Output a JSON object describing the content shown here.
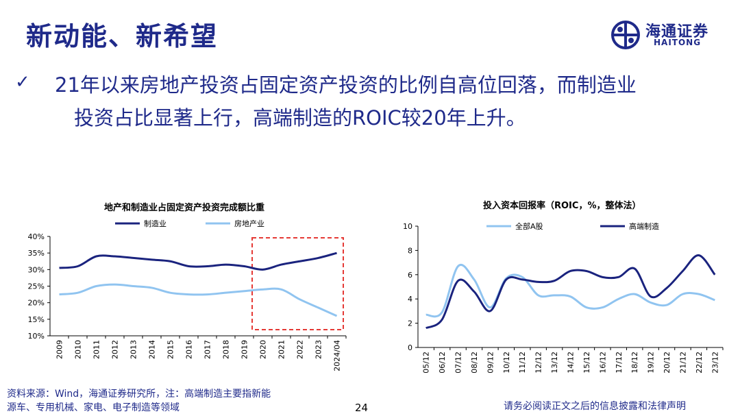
{
  "header": {
    "title": "新动能、新希望",
    "logo_cn": "海通证券",
    "logo_en": "HAITONG"
  },
  "bullet": {
    "line1": "21年以来房地产投资占固定资产投资的比例自高位回落，而制造业",
    "line2": "投资占比显著上行，高端制造的ROIC较20年上升。"
  },
  "chart_data": [
    {
      "type": "line",
      "title": "地产和制造业占固定资产投资完成额比重",
      "categories": [
        "2009",
        "2010",
        "2011",
        "2012",
        "2013",
        "2014",
        "2015",
        "2016",
        "2017",
        "2018",
        "2019",
        "2020",
        "2021",
        "2022",
        "2023",
        "2024/04"
      ],
      "series": [
        {
          "name": "制造业",
          "color": "#1a237e",
          "values": [
            30.5,
            31,
            34,
            34,
            33.5,
            33,
            32.5,
            31,
            31,
            31.5,
            31,
            30,
            31.5,
            32.5,
            33.5,
            35
          ]
        },
        {
          "name": "房地产业",
          "color": "#90c4f0",
          "values": [
            22.5,
            23,
            25,
            25.5,
            25,
            24.5,
            23,
            22.5,
            22.5,
            23,
            23.5,
            24,
            24,
            21,
            18.5,
            16
          ]
        }
      ],
      "ylim": [
        10,
        40
      ],
      "yticks": [
        "10%",
        "15%",
        "20%",
        "25%",
        "30%",
        "35%",
        "40%"
      ],
      "legend": "top",
      "highlight": "2020–2024/04"
    },
    {
      "type": "line",
      "title": "投入资本回报率（ROIC，%，整体法）",
      "categories": [
        "05/12",
        "06/12",
        "07/12",
        "08/12",
        "09/12",
        "10/12",
        "11/12",
        "12/12",
        "13/12",
        "14/12",
        "15/12",
        "16/12",
        "17/12",
        "18/12",
        "19/12",
        "20/12",
        "21/12",
        "22/12",
        "23/12"
      ],
      "series": [
        {
          "name": "全部A股",
          "color": "#90c4f0",
          "values": [
            2.7,
            2.9,
            6.7,
            5.6,
            3.3,
            5.7,
            5.8,
            4.3,
            4.3,
            4.2,
            3.3,
            3.3,
            4.0,
            4.4,
            3.7,
            3.5,
            4.4,
            4.4,
            3.9
          ]
        },
        {
          "name": "高端制造",
          "color": "#1a237e",
          "values": [
            1.6,
            2.3,
            5.5,
            4.6,
            3.0,
            5.6,
            5.6,
            5.4,
            5.5,
            6.3,
            6.3,
            5.8,
            5.8,
            6.5,
            4.2,
            4.9,
            6.3,
            7.6,
            6.0
          ]
        }
      ],
      "ylim": [
        0,
        10
      ],
      "yticks": [
        "0",
        "2",
        "4",
        "6",
        "8",
        "10"
      ],
      "legend": "top"
    }
  ],
  "footer": {
    "source_line1": "资料来源：Wind，海通证券研究所，注：高端制造主要指新能",
    "source_line2": "源车、专用机械、家电、电子制造等领域",
    "page_number": "24",
    "disclaimer": "请务必阅读正文之后的信息披露和法律声明"
  }
}
